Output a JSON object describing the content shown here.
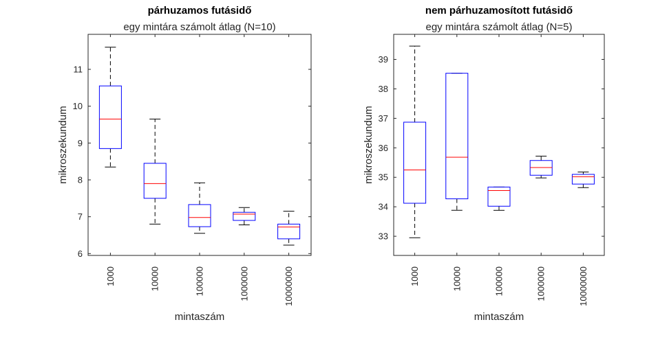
{
  "chart_data": [
    {
      "type": "boxplot",
      "title": "párhuzamos futásidő",
      "subtitle": "egy mintára számolt átlag (N=10)",
      "xlabel": "mintaszám",
      "ylabel": "mikroszekundum",
      "categories": [
        "1000",
        "10000",
        "100000",
        "1000000",
        "10000000"
      ],
      "ylim": [
        5.95,
        11.95
      ],
      "yticks": [
        6,
        7,
        8,
        9,
        10,
        11
      ],
      "boxes": [
        {
          "whisker_low": 8.35,
          "q1": 8.85,
          "median": 9.65,
          "q3": 10.55,
          "whisker_high": 11.6
        },
        {
          "whisker_low": 6.8,
          "q1": 7.5,
          "median": 7.9,
          "q3": 8.45,
          "whisker_high": 9.65
        },
        {
          "whisker_low": 6.55,
          "q1": 6.73,
          "median": 6.98,
          "q3": 7.33,
          "whisker_high": 7.92
        },
        {
          "whisker_low": 6.78,
          "q1": 6.9,
          "median": 7.07,
          "q3": 7.12,
          "whisker_high": 7.25
        },
        {
          "whisker_low": 6.23,
          "q1": 6.4,
          "median": 6.72,
          "q3": 6.8,
          "whisker_high": 7.15
        }
      ],
      "colors": {
        "box": "#0000ff",
        "median": "#ff0000",
        "whisker": "#000000"
      }
    },
    {
      "type": "boxplot",
      "title": "nem párhuzamosított futásidő",
      "subtitle": "egy mintára számolt átlag (N=5)",
      "xlabel": "mintaszám",
      "ylabel": "mikroszekundum",
      "categories": [
        "1000",
        "10000",
        "100000",
        "1000000",
        "10000000"
      ],
      "ylim": [
        32.35,
        39.85
      ],
      "yticks": [
        33,
        34,
        35,
        36,
        37,
        38,
        39
      ],
      "boxes": [
        {
          "whisker_low": 32.95,
          "q1": 34.12,
          "median": 35.25,
          "q3": 36.87,
          "whisker_high": 39.45
        },
        {
          "whisker_low": 33.88,
          "q1": 34.27,
          "median": 35.68,
          "q3": 38.53,
          "whisker_high": 38.53
        },
        {
          "whisker_low": 33.88,
          "q1": 34.02,
          "median": 34.55,
          "q3": 34.67,
          "whisker_high": 34.67
        },
        {
          "whisker_low": 34.98,
          "q1": 35.07,
          "median": 35.33,
          "q3": 35.57,
          "whisker_high": 35.72
        },
        {
          "whisker_low": 34.65,
          "q1": 34.77,
          "median": 35.02,
          "q3": 35.1,
          "whisker_high": 35.18
        }
      ],
      "colors": {
        "box": "#0000ff",
        "median": "#ff0000",
        "whisker": "#000000"
      }
    }
  ]
}
